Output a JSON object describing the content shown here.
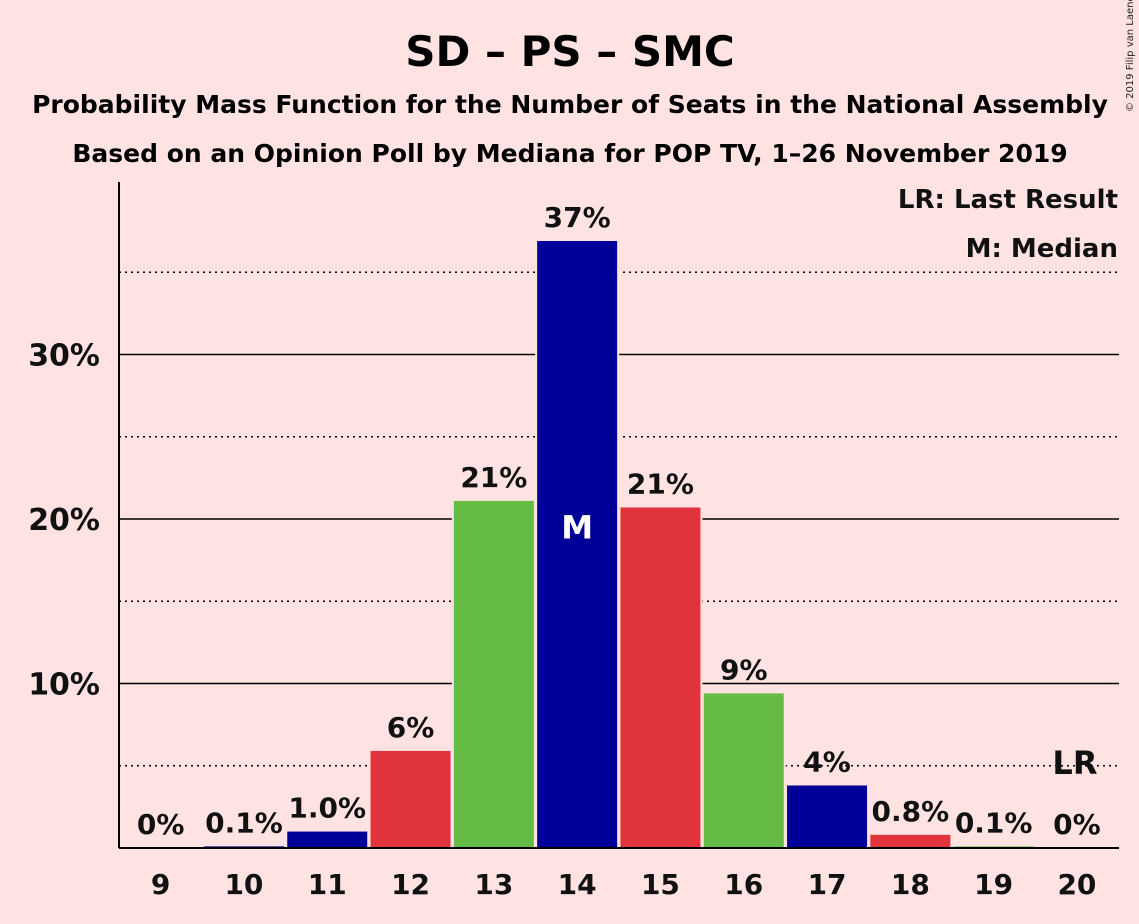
{
  "chart_data": {
    "type": "bar",
    "title": "SD – PS – SMC",
    "subtitle1": "Probability Mass Function for the Number of Seats in the National Assembly",
    "subtitle2": "Based on an Opinion Poll by Mediana for POP TV, 1–26 November 2019",
    "copyright": "© 2019 Filip van Laenen",
    "xlabel": "",
    "ylabel": "",
    "categories": [
      "9",
      "10",
      "11",
      "12",
      "13",
      "14",
      "15",
      "16",
      "17",
      "18",
      "19",
      "20"
    ],
    "values": [
      0,
      0.1,
      1.0,
      5.9,
      21.1,
      36.9,
      20.7,
      9.4,
      3.8,
      0.8,
      0.1,
      0
    ],
    "labels": [
      "0%",
      "0.1%",
      "1.0%",
      "6%",
      "21%",
      "37%",
      "21%",
      "9%",
      "4%",
      "0.8%",
      "0.1%",
      "0%"
    ],
    "colors": [
      "#009900",
      "#000099",
      "#000099",
      "#E1333B",
      "#66BB44",
      "#000099",
      "#E1333B",
      "#66BB44",
      "#000099",
      "#E1333B",
      "#66BB44",
      "#000099"
    ],
    "ylim": [
      0,
      40
    ],
    "yticks_major": [
      10,
      20,
      30
    ],
    "ytick_labels": [
      "10%",
      "20%",
      "30%"
    ],
    "yticks_minor": [
      5,
      15,
      25,
      35
    ],
    "median_category": "14",
    "median_marker": "M",
    "last_result_category": "20",
    "last_result_marker": "LR",
    "legend": [
      "LR: Last Result",
      "M: Median"
    ]
  }
}
